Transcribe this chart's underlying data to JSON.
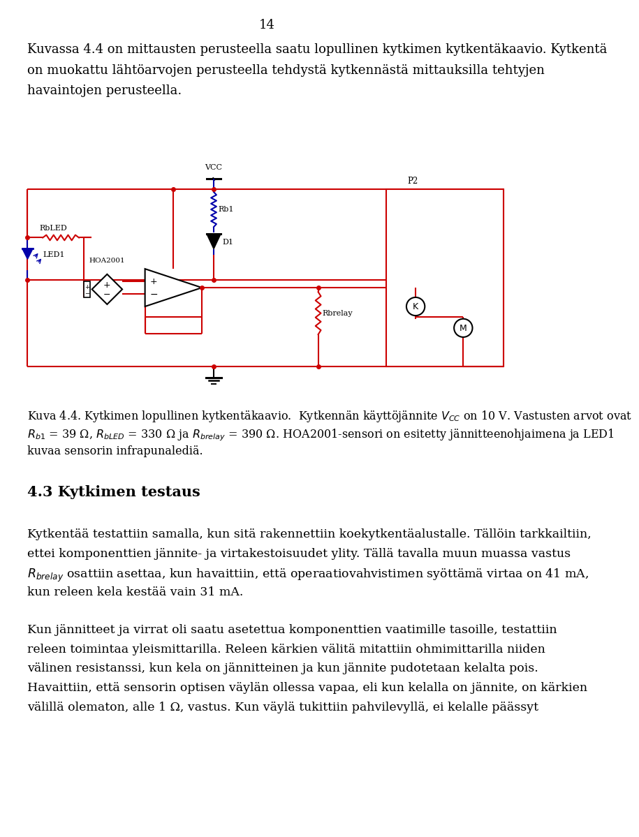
{
  "page_number": "14",
  "bg": "#ffffff",
  "black": "#000000",
  "red": "#cc0000",
  "blue": "#0000aa",
  "para1_lines": [
    "Kuvassa 4.4 on mittausten perusteella saatu lopullinen kytkimen kytkentäkaavio. Kytkentä",
    "on muokattu lähtöarvojen perusteella tehdystä kytkennästä mittauksilla tehtyjen",
    "havaintojen perusteella."
  ],
  "cap_line1": "Kuva 4.4. Kytkimen lopullinen kytkentäkaavio.  Kytkennän käyttöjännite $V_{CC}$ on 10 V. Vastusten arvot ovat",
  "cap_line2": "$R_{b1}$ = 39 Ω, $R_{bLED}$ = 330 Ω ja $R_{brelay}$ = 390 Ω. HOA2001-sensori on esitetty jännitteenohjaimena ja LED1",
  "cap_line3": "kuvaa sensorin infrapunalediä.",
  "section_title": "4.3 Kytkimen testaus",
  "p2_line1": "Kytkentää testattiin samalla, kun sitä rakennettiin koekytkentäalustalle. Tällöin tarkkailtiin,",
  "p2_line2": "ettei komponenttien jännite- ja virtakestoisuudet ylity. Tällä tavalla muun muassa vastus",
  "p2_line3": "$R_{brelay}$ osattiin asettaa, kun havaittiin, että operaatiovahvistimen syöttämä virtaa on 41 mA,",
  "p2_line4": "kun releen kela kestää vain 31 mA.",
  "p3_line1": "Kun jännitteet ja virrat oli saatu asetettua komponenttien vaatimille tasoille, testattiin",
  "p3_line2": "releen toimintaa yleismittarilla. Releen kärkien välitä mitattiin ohmimittarilla niiden",
  "p3_line3": "välinen resistanssi, kun kela on jännitteinen ja kun jännite pudotetaan kelalta pois.",
  "p3_line4": "Havaittiin, että sensorin optisen väylän ollessa vapaa, eli kun kelalla on jännite, on kärkien",
  "p3_line5": "välillä olematon, alle 1 Ω, vastus. Kun väylä tukittiin pahvilevyllä, ei kelalle päässyt"
}
